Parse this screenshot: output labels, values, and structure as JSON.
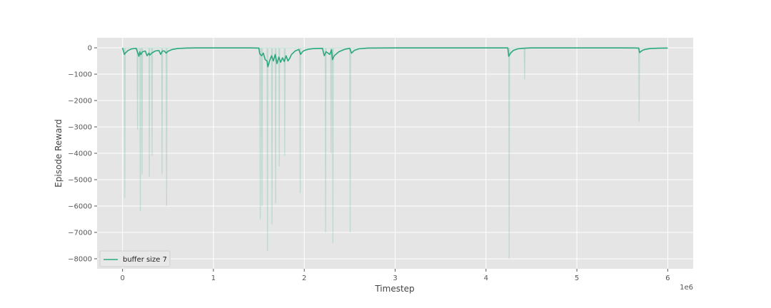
{
  "chart_data": {
    "type": "line",
    "title": "",
    "xlabel": "Timestep",
    "ylabel": "Episode Reward",
    "x_offset_label": "1e6",
    "xlim": [
      -0.28,
      6.28
    ],
    "ylim": [
      -8380,
      380
    ],
    "xticks": [
      0,
      1,
      2,
      3,
      4,
      5,
      6
    ],
    "xtick_labels": [
      "0",
      "1",
      "2",
      "3",
      "4",
      "5",
      "6"
    ],
    "yticks": [
      0,
      -1000,
      -2000,
      -3000,
      -4000,
      -5000,
      -6000,
      -7000,
      -8000
    ],
    "ytick_labels": [
      "0",
      "−1000",
      "−2000",
      "−3000",
      "−4000",
      "−5000",
      "−6000",
      "−7000",
      "−8000"
    ],
    "grid": true,
    "legend_position": "bottom-left",
    "colors": {
      "smoothed": "#2ca87f",
      "raw": "#2ca87f",
      "background": "#e5e5e5",
      "grid": "#ffffff"
    },
    "series": [
      {
        "name": "buffer size 7",
        "kind": "smoothed",
        "x": [
          0.0,
          0.02,
          0.03,
          0.06,
          0.1,
          0.15,
          0.18,
          0.19,
          0.2,
          0.22,
          0.25,
          0.27,
          0.29,
          0.3,
          0.32,
          0.36,
          0.4,
          0.42,
          0.44,
          0.46,
          0.48,
          0.5,
          0.55,
          0.6,
          0.7,
          0.8,
          1.0,
          1.2,
          1.4,
          1.5,
          1.51,
          1.53,
          1.55,
          1.57,
          1.59,
          1.6,
          1.62,
          1.64,
          1.66,
          1.68,
          1.7,
          1.72,
          1.74,
          1.76,
          1.78,
          1.8,
          1.82,
          1.84,
          1.86,
          1.9,
          1.94,
          1.96,
          1.98,
          2.0,
          2.05,
          2.1,
          2.2,
          2.22,
          2.24,
          2.28,
          2.3,
          2.31,
          2.33,
          2.38,
          2.45,
          2.5,
          2.52,
          2.55,
          2.6,
          2.7,
          3.0,
          3.5,
          4.0,
          4.24,
          4.25,
          4.27,
          4.3,
          4.35,
          4.4,
          4.45,
          4.5,
          5.0,
          5.5,
          5.68,
          5.69,
          5.72,
          5.75,
          5.8,
          5.9,
          6.0
        ],
        "y": [
          0,
          -250,
          -200,
          -100,
          -40,
          -20,
          -320,
          -150,
          -260,
          -150,
          -120,
          -300,
          -200,
          -280,
          -200,
          -120,
          -100,
          -250,
          -120,
          -120,
          -200,
          -130,
          -60,
          -30,
          -10,
          -5,
          -5,
          -5,
          -5,
          -10,
          -220,
          -300,
          -200,
          -450,
          -500,
          -720,
          -480,
          -300,
          -500,
          -250,
          -600,
          -350,
          -550,
          -380,
          -520,
          -300,
          -500,
          -400,
          -250,
          -120,
          -60,
          -250,
          -150,
          -100,
          -50,
          -30,
          -20,
          -300,
          -150,
          -250,
          -80,
          -450,
          -300,
          -150,
          -50,
          -20,
          -200,
          -100,
          -40,
          -10,
          -5,
          -5,
          -5,
          -5,
          -320,
          -200,
          -100,
          -40,
          -20,
          -10,
          -5,
          -5,
          -5,
          -10,
          -180,
          -100,
          -60,
          -30,
          -15,
          -10
        ]
      },
      {
        "name": "",
        "kind": "raw",
        "x": [
          0.0,
          0.02,
          0.025,
          0.03,
          0.16,
          0.165,
          0.17,
          0.19,
          0.195,
          0.2,
          0.21,
          0.215,
          0.22,
          0.29,
          0.295,
          0.3,
          0.32,
          0.325,
          0.33,
          0.43,
          0.435,
          0.44,
          0.48,
          0.485,
          0.49,
          1.51,
          1.515,
          1.52,
          1.53,
          1.535,
          1.54,
          1.59,
          1.595,
          1.6,
          1.64,
          1.645,
          1.65,
          1.68,
          1.685,
          1.69,
          1.72,
          1.725,
          1.73,
          1.78,
          1.785,
          1.79,
          1.95,
          1.955,
          1.96,
          2.23,
          2.235,
          2.24,
          2.29,
          2.295,
          2.3,
          2.31,
          2.315,
          2.32,
          2.5,
          2.505,
          2.51,
          4.25,
          4.255,
          4.26,
          4.42,
          4.425,
          4.43,
          5.68,
          5.685,
          5.69,
          6.0
        ],
        "y": [
          0,
          0,
          -5700,
          0,
          0,
          -3100,
          0,
          0,
          -6200,
          0,
          0,
          -4800,
          0,
          0,
          -4900,
          0,
          0,
          -4100,
          0,
          0,
          -4800,
          0,
          0,
          -6000,
          0,
          0,
          -6500,
          0,
          0,
          -6000,
          0,
          0,
          -7700,
          0,
          0,
          -6700,
          0,
          0,
          -5900,
          0,
          0,
          -4500,
          0,
          0,
          -4100,
          0,
          0,
          -5500,
          0,
          0,
          -7000,
          0,
          0,
          -4000,
          0,
          0,
          -7400,
          0,
          0,
          -7000,
          0,
          0,
          -8000,
          0,
          0,
          -1200,
          0,
          0,
          -2800,
          0,
          0
        ]
      }
    ]
  }
}
